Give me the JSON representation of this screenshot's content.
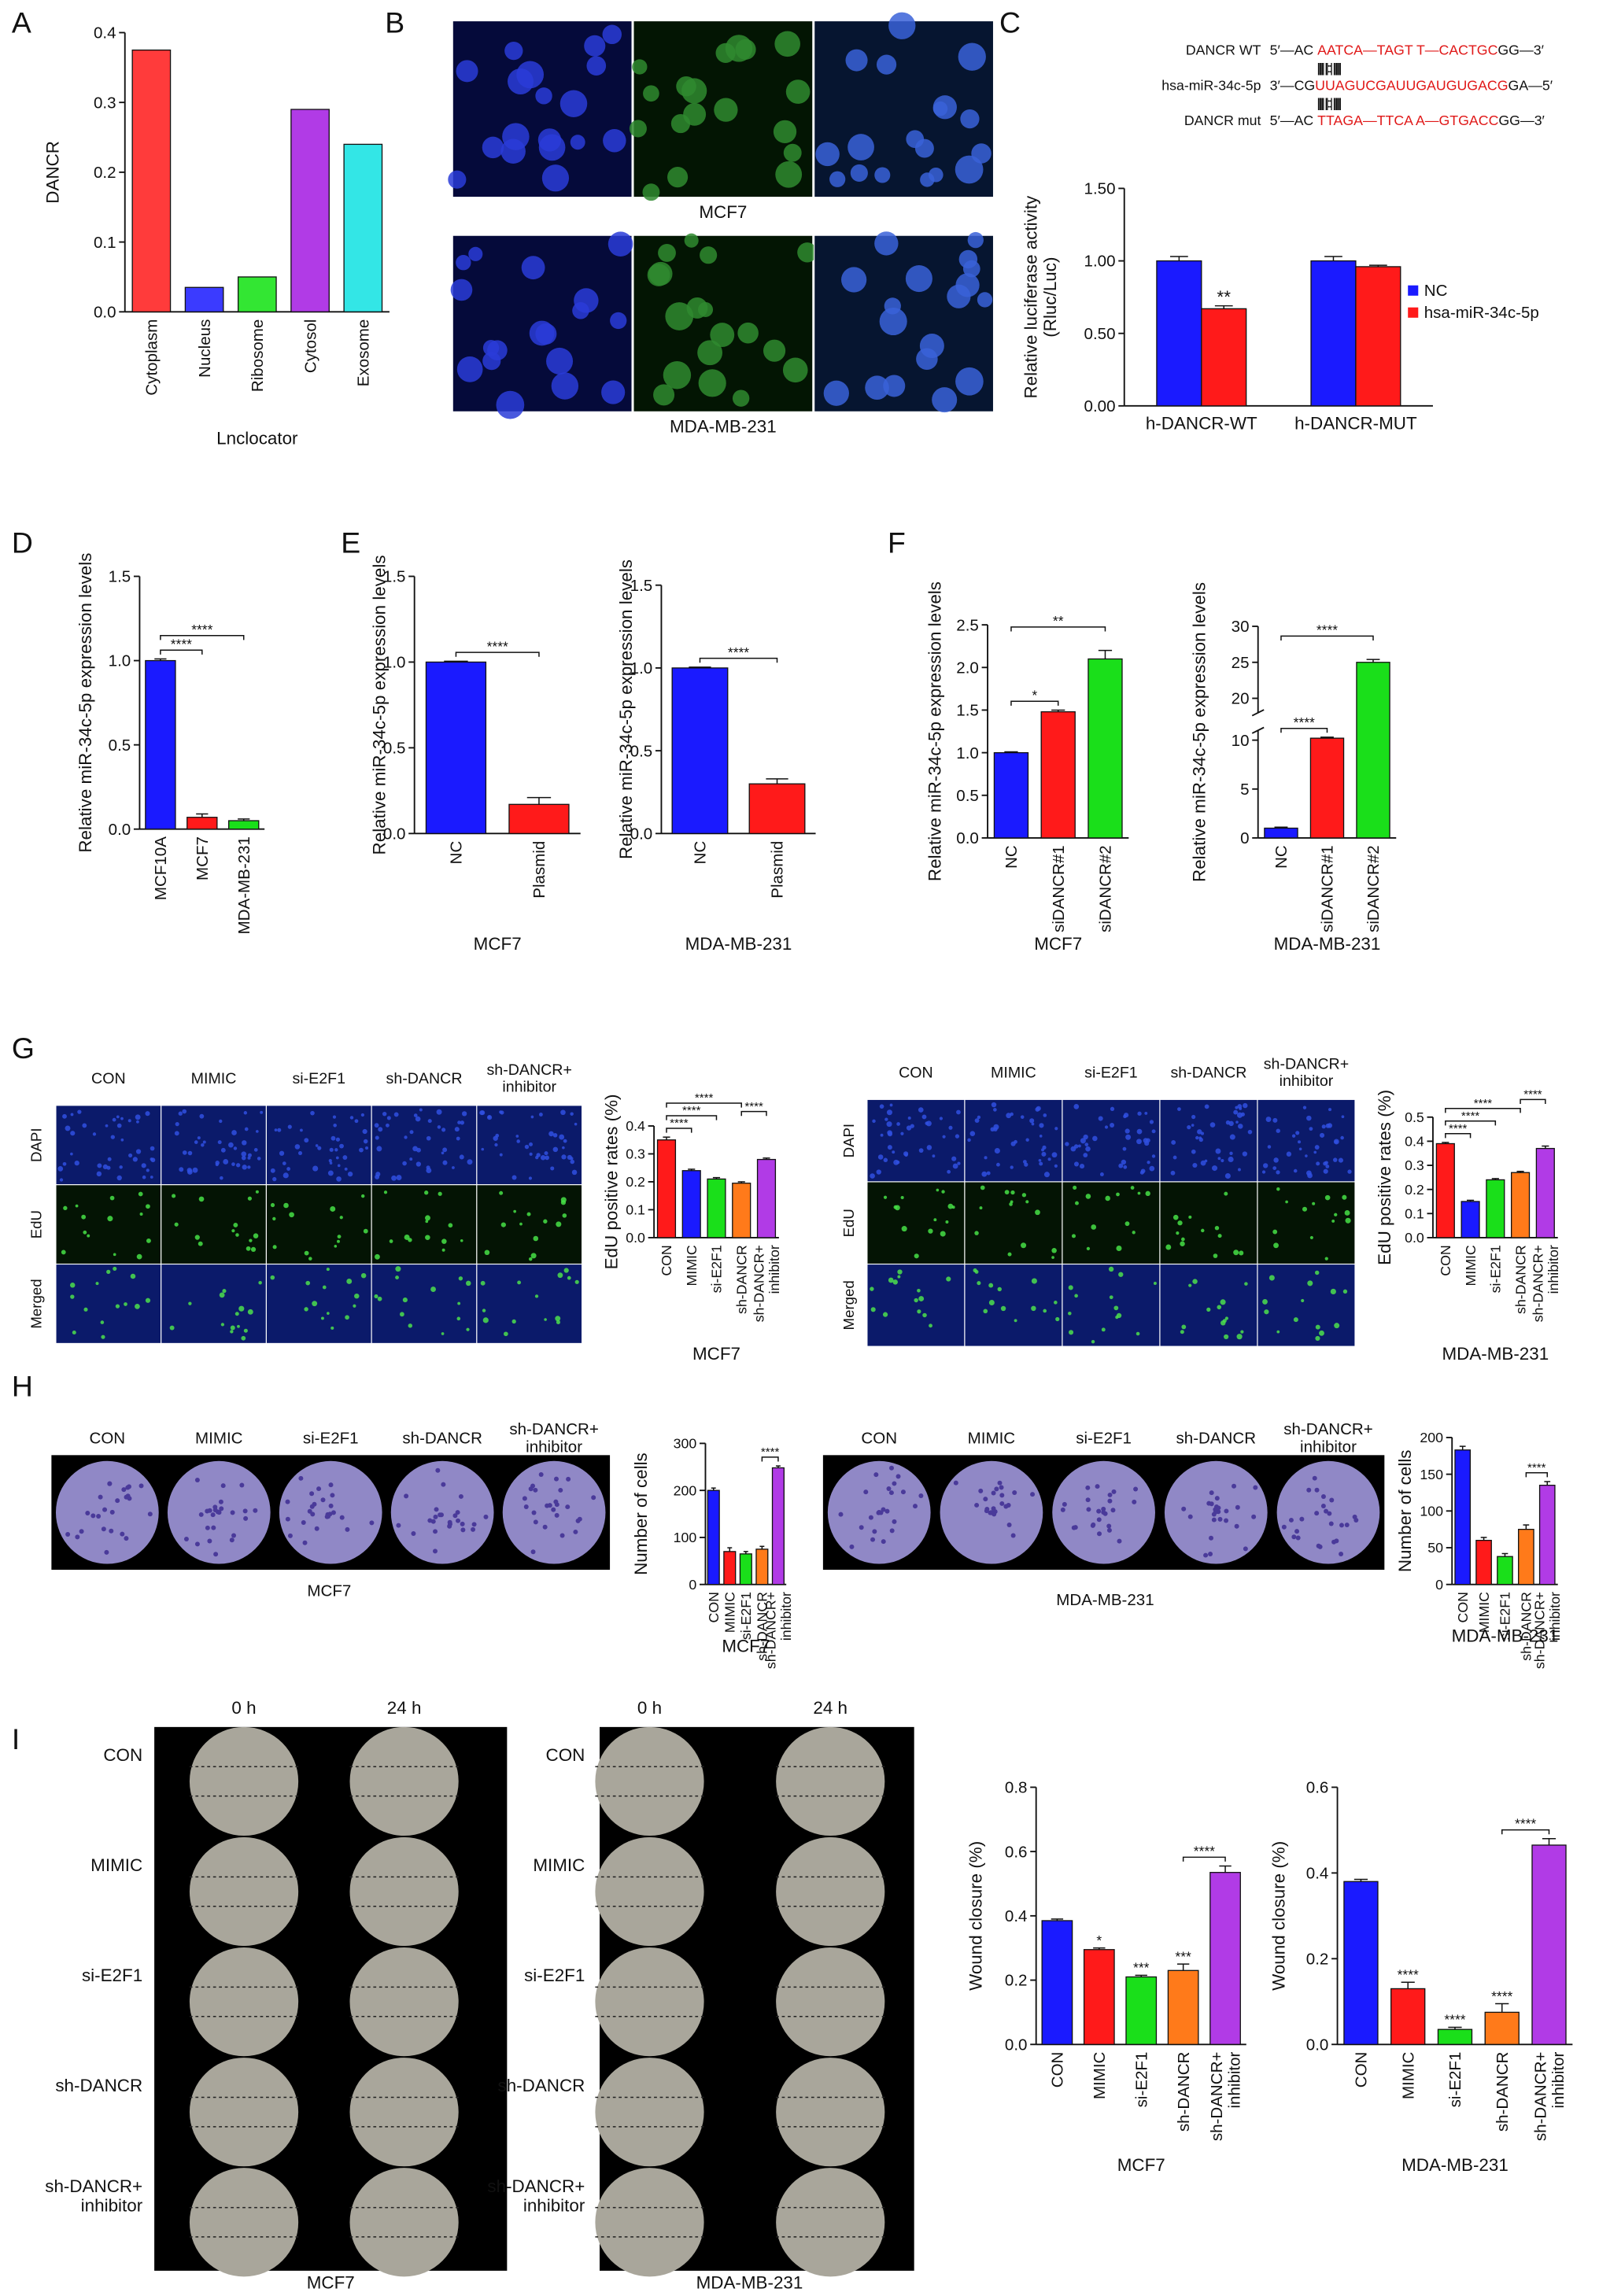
{
  "panel_labels": [
    "A",
    "B",
    "C",
    "D",
    "E",
    "F",
    "G",
    "H",
    "I"
  ],
  "B": {
    "captions": [
      "MCF7",
      "MDA-MB-231"
    ]
  },
  "C": {
    "sequences": [
      {
        "name": "DANCR WT",
        "parts": [
          "5′—AC ",
          "AATCA—TAGT T—CACTGC",
          "GG—3′"
        ]
      },
      {
        "pairs": "|||||   ||::|  ||||||"
      },
      {
        "name": "hsa-miR-34c-5p",
        "parts": [
          "3′—CG",
          "UUAGUCGAUUGAUGUGACG",
          "GA—5′"
        ]
      },
      {
        "pairs": "|||||   ||::|  ||||||"
      },
      {
        "name": "DANCR mut",
        "parts": [
          "5′—AC ",
          "TTAGA—TTCA A—GTGACC",
          "GG—3′"
        ]
      }
    ]
  },
  "G": {
    "left": {
      "columns": [
        "CON",
        "MIMIC",
        "si-E2F1",
        "sh-DANCR",
        [
          "sh-DANCR+",
          "inhibitor"
        ]
      ],
      "rows": [
        "DAPI",
        "EdU",
        "Merged"
      ]
    },
    "right": {
      "columns": [
        "CON",
        "MIMIC",
        "si-E2F1",
        "sh-DANCR",
        [
          "sh-DANCR+",
          "inhibitor"
        ]
      ],
      "rows": [
        "DAPI",
        "EdU",
        "Merged"
      ]
    }
  },
  "H": {
    "left": {
      "columns": [
        "CON",
        "MIMIC",
        "si-E2F1",
        "sh-DANCR",
        [
          "sh-DANCR+",
          "inhibitor"
        ]
      ],
      "caption": "MCF7"
    },
    "right": {
      "columns": [
        "CON",
        "MIMIC",
        "si-E2F1",
        "sh-DANCR",
        [
          "sh-DANCR+",
          "inhibitor"
        ]
      ],
      "caption": "MDA-MB-231"
    }
  },
  "I": {
    "left": {
      "columns": [
        "0 h",
        "24 h"
      ],
      "rows": [
        "CON",
        "MIMIC",
        "si-E2F1",
        "sh-DANCR",
        [
          "sh-DANCR+",
          "inhibitor"
        ]
      ],
      "caption": "MCF7"
    },
    "right": {
      "columns": [
        "0 h",
        "24 h"
      ],
      "rows": [
        "CON",
        "MIMIC",
        "si-E2F1",
        "sh-DANCR",
        [
          "sh-DANCR+",
          "inhibitor"
        ]
      ],
      "caption": "MDA-MB-231"
    }
  },
  "chart_data": [
    {
      "type": "bar",
      "ylabel": "DANCR",
      "xlabel": "Lnclocator",
      "categories": [
        "Cytoplasm",
        "Nucleus",
        "Ribosome",
        "Cytosol",
        "Exosome"
      ],
      "values": [
        0.375,
        0.035,
        0.05,
        0.29,
        0.24
      ],
      "colors": [
        "#ff3b3b",
        "#3b3bff",
        "#33e633",
        "#b13be6",
        "#33e6e6"
      ],
      "ylim": [
        0,
        0.4
      ],
      "yticks": [
        {
          "value": 0,
          "label": "0.0"
        },
        0.1,
        0.2,
        0.3,
        0.4
      ]
    },
    {
      "type": "grouped_bar",
      "ylabel": [
        "Relative luciferase activity",
        "(Rluc/Luc)"
      ],
      "categories": [
        "h-DANCR-WT",
        "h-DANCR-MUT"
      ],
      "series": [
        {
          "name": "NC",
          "color": "#1a1aff",
          "values": [
            1.0,
            1.0
          ],
          "errors": [
            0.03,
            0.03
          ]
        },
        {
          "name": "hsa-miR-34c-5p",
          "color": "#ff1a1a",
          "values": [
            0.67,
            0.96
          ],
          "errors": [
            0.02,
            0.01
          ]
        }
      ],
      "ylim": [
        0,
        1.5
      ],
      "yticks": [
        {
          "value": 0,
          "label": "0.00"
        },
        {
          "value": 0.5,
          "label": "0.50"
        },
        {
          "value": 1,
          "label": "1.00"
        },
        {
          "value": 1.5,
          "label": "1.50"
        }
      ],
      "annotations": [
        {
          "text": "**",
          "series": 1,
          "at": 0
        }
      ],
      "legend": "right"
    },
    {
      "type": "bar",
      "ylabel": "Relative miR-34c-5p expression levels",
      "categories": [
        "MCF10A",
        "MCF7",
        "MDA-MB-231"
      ],
      "values": [
        1.0,
        0.07,
        0.05
      ],
      "errors": [
        0.01,
        0.02,
        0.01
      ],
      "colors": [
        "#1a1aff",
        "#ff1a1a",
        "#1adf1a"
      ],
      "ylim": [
        0,
        1.5
      ],
      "yticks": [
        {
          "value": 0,
          "label": "0.0"
        },
        0.5,
        {
          "value": 1,
          "label": "1.0"
        },
        1.5
      ],
      "annotations": [
        {
          "text": "****",
          "between": [
            0,
            1
          ]
        },
        {
          "text": "****",
          "between": [
            0,
            2
          ]
        }
      ]
    },
    {
      "type": "bar",
      "ylabel": "Relative miR-34c-5p expression levels",
      "xlabel": "MCF7",
      "categories": [
        "NC",
        "Plasmid"
      ],
      "values": [
        1.0,
        0.17
      ],
      "errors": [
        0.005,
        0.04
      ],
      "colors": [
        "#1a1aff",
        "#ff1a1a"
      ],
      "ylim": [
        0,
        1.5
      ],
      "yticks": [
        {
          "value": 0,
          "label": "0.0"
        },
        0.5,
        {
          "value": 1,
          "label": "1.0"
        },
        1.5
      ],
      "annotations": [
        {
          "text": "****",
          "between": [
            0,
            1
          ]
        }
      ]
    },
    {
      "type": "bar",
      "ylabel": "Relative miR-34c-5p expression levels",
      "xlabel": "MDA-MB-231",
      "categories": [
        "NC",
        "Plasmid"
      ],
      "values": [
        1.0,
        0.3
      ],
      "errors": [
        0.005,
        0.03
      ],
      "colors": [
        "#1a1aff",
        "#ff1a1a"
      ],
      "ylim": [
        0,
        1.5
      ],
      "yticks": [
        {
          "value": 0,
          "label": "0.0"
        },
        0.5,
        {
          "value": 1,
          "label": "1.0"
        },
        1.5
      ],
      "annotations": [
        {
          "text": "****",
          "between": [
            0,
            1
          ]
        }
      ]
    },
    {
      "type": "bar",
      "ylabel": "Relative miR-34c-5p expression levels",
      "xlabel": "MCF7",
      "categories": [
        "NC",
        "siDANCR#1",
        "siDANCR#2"
      ],
      "values": [
        1.0,
        1.48,
        2.1
      ],
      "errors": [
        0.01,
        0.02,
        0.1
      ],
      "colors": [
        "#1a1aff",
        "#ff1a1a",
        "#1adf1a"
      ],
      "ylim": [
        0,
        2.5
      ],
      "yticks": [
        {
          "value": 0,
          "label": "0.0"
        },
        0.5,
        {
          "value": 1,
          "label": "1.0"
        },
        1.5,
        {
          "value": 2,
          "label": "2.0"
        },
        2.5
      ],
      "annotations": [
        {
          "text": "*",
          "between": [
            0,
            1
          ]
        },
        {
          "text": "**",
          "between": [
            0,
            2
          ]
        }
      ]
    },
    {
      "type": "bar",
      "ylabel": "Relative miR-34c-5p expression levels",
      "xlabel": "MDA-MB-231",
      "categories": [
        "NC",
        "siDANCR#1",
        "siDANCR#2"
      ],
      "values": [
        1.0,
        10.2,
        25
      ],
      "errors": [
        0.1,
        0.1,
        0.4
      ],
      "colors": [
        "#1a1aff",
        "#ff1a1a",
        "#1adf1a"
      ],
      "ylim": [
        0,
        30
      ],
      "yticks": [
        0,
        5,
        10,
        20,
        25,
        30
      ],
      "ybreak": [
        11,
        18
      ],
      "annotations": [
        {
          "text": "****",
          "between": [
            0,
            1
          ]
        },
        {
          "text": "****",
          "between": [
            0,
            2
          ]
        }
      ]
    },
    {
      "type": "bar",
      "ylabel": "EdU positive rates (%)",
      "xlabel": "MCF7",
      "categories": [
        "CON",
        "MIMIC",
        "si-E2F1",
        "sh-DANCR",
        [
          "sh-DANCR+",
          "inhibitor"
        ]
      ],
      "values": [
        0.35,
        0.24,
        0.21,
        0.195,
        0.28
      ],
      "errors": [
        0.01,
        0.005,
        0.005,
        0.005,
        0.005
      ],
      "colors": [
        "#ff1a1a",
        "#1a1aff",
        "#1adf1a",
        "#ff7a1a",
        "#b13be6"
      ],
      "ylim": [
        0,
        0.4
      ],
      "yticks": [
        {
          "value": 0,
          "label": "0.0"
        },
        0.1,
        0.2,
        0.3,
        0.4
      ],
      "annotations": [
        {
          "text": "****",
          "between": [
            0,
            1
          ]
        },
        {
          "text": "****",
          "between": [
            0,
            2
          ]
        },
        {
          "text": "****",
          "between": [
            0,
            3
          ]
        },
        {
          "text": "****",
          "between": [
            3,
            4
          ]
        }
      ]
    },
    {
      "type": "bar",
      "ylabel": "EdU positive rates (%)",
      "xlabel": "MDA-MB-231",
      "categories": [
        "CON",
        "MIMIC",
        "si-E2F1",
        "sh-DANCR",
        [
          "sh-DANCR+",
          "inhibitor"
        ]
      ],
      "values": [
        0.39,
        0.15,
        0.24,
        0.27,
        0.37
      ],
      "errors": [
        0.005,
        0.005,
        0.005,
        0.005,
        0.01
      ],
      "colors": [
        "#ff1a1a",
        "#1a1aff",
        "#1adf1a",
        "#ff7a1a",
        "#b13be6"
      ],
      "ylim": [
        0,
        0.5
      ],
      "yticks": [
        {
          "value": 0,
          "label": "0.0"
        },
        0.1,
        0.2,
        0.3,
        0.4,
        0.5
      ],
      "annotations": [
        {
          "text": "****",
          "between": [
            0,
            1
          ]
        },
        {
          "text": "****",
          "between": [
            0,
            2
          ]
        },
        {
          "text": "****",
          "between": [
            0,
            3
          ]
        },
        {
          "text": "****",
          "between": [
            3,
            4
          ]
        }
      ]
    },
    {
      "type": "bar",
      "ylabel": "Number of cells",
      "xlabel": "MCF7",
      "categories": [
        "CON",
        "MIMIC",
        "si-E2F1",
        "sh-DANCR",
        [
          "sh-DANCR+",
          "inhibitor"
        ]
      ],
      "values": [
        200,
        70,
        65,
        75,
        248
      ],
      "errors": [
        5,
        8,
        5,
        6,
        4
      ],
      "colors": [
        "#1a1aff",
        "#ff1a1a",
        "#1adf1a",
        "#ff7a1a",
        "#b13be6"
      ],
      "ylim": [
        0,
        300
      ],
      "yticks": [
        0,
        100,
        200,
        300
      ],
      "annotations": [
        {
          "text": "****",
          "between": [
            3,
            4
          ]
        }
      ]
    },
    {
      "type": "bar",
      "ylabel": "Number of cells",
      "xlabel": "MDA-MB-231",
      "categories": [
        "CON",
        "MIMIC",
        "si-E2F1",
        "sh-DANCR",
        [
          "sh-DANCR+",
          "inhibitor"
        ]
      ],
      "values": [
        183,
        60,
        38,
        75,
        135
      ],
      "errors": [
        5,
        4,
        4,
        6,
        5
      ],
      "colors": [
        "#1a1aff",
        "#ff1a1a",
        "#1adf1a",
        "#ff7a1a",
        "#b13be6"
      ],
      "ylim": [
        0,
        200
      ],
      "yticks": [
        0,
        50,
        100,
        150,
        200
      ],
      "annotations": [
        {
          "text": "****",
          "between": [
            3,
            4
          ]
        }
      ]
    },
    {
      "type": "bar",
      "ylabel": "Wound closure (%)",
      "xlabel": "MCF7",
      "categories": [
        "CON",
        "MIMIC",
        "si-E2F1",
        "sh-DANCR",
        [
          "sh-DANCR+",
          "inhibitor"
        ]
      ],
      "values": [
        0.385,
        0.295,
        0.21,
        0.23,
        0.535
      ],
      "errors": [
        0.005,
        0.005,
        0.005,
        0.02,
        0.02
      ],
      "colors": [
        "#1a1aff",
        "#ff1a1a",
        "#1adf1a",
        "#ff7a1a",
        "#b13be6"
      ],
      "ylim": [
        0,
        0.8
      ],
      "yticks": [
        {
          "value": 0,
          "label": "0.0"
        },
        0.2,
        0.4,
        0.6,
        0.8
      ],
      "annotations": [
        {
          "text": "*",
          "at": 1
        },
        {
          "text": "***",
          "at": 2
        },
        {
          "text": "***",
          "at": 3
        },
        {
          "text": "****",
          "between": [
            3,
            4
          ]
        }
      ]
    },
    {
      "type": "bar",
      "ylabel": "Wound closure (%)",
      "xlabel": "MDA-MB-231",
      "categories": [
        "CON",
        "MIMIC",
        "si-E2F1",
        "sh-DANCR",
        [
          "sh-DANCR+",
          "inhibitor"
        ]
      ],
      "values": [
        0.38,
        0.13,
        0.035,
        0.075,
        0.465
      ],
      "errors": [
        0.005,
        0.015,
        0.005,
        0.02,
        0.015
      ],
      "colors": [
        "#1a1aff",
        "#ff1a1a",
        "#1adf1a",
        "#ff7a1a",
        "#b13be6"
      ],
      "ylim": [
        0,
        0.6
      ],
      "yticks": [
        {
          "value": 0,
          "label": "0.0"
        },
        0.2,
        0.4,
        0.6
      ],
      "annotations": [
        {
          "text": "****",
          "at": 1
        },
        {
          "text": "****",
          "at": 2
        },
        {
          "text": "****",
          "at": 3
        },
        {
          "text": "****",
          "between": [
            3,
            4
          ]
        }
      ]
    }
  ]
}
